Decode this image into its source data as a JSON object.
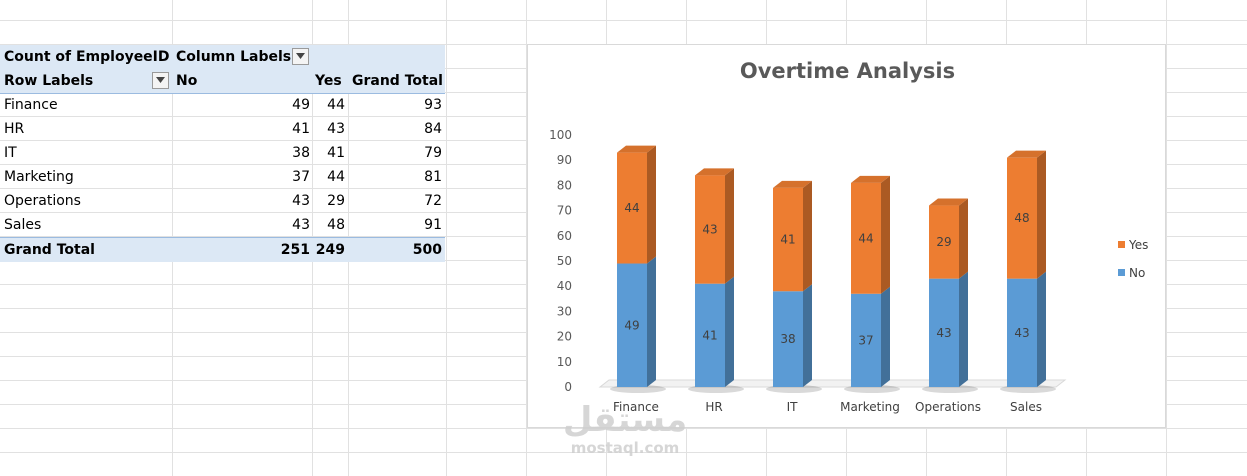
{
  "pivot": {
    "count_label": "Count of EmployeeID",
    "column_labels": "Column Labels",
    "row_labels": "Row Labels",
    "col_no": "No",
    "col_yes": "Yes",
    "col_total": "Grand Total",
    "rows": [
      {
        "label": "Finance",
        "no": "49",
        "yes": "44",
        "total": "93"
      },
      {
        "label": "HR",
        "no": "41",
        "yes": "43",
        "total": "84"
      },
      {
        "label": "IT",
        "no": "38",
        "yes": "41",
        "total": "79"
      },
      {
        "label": "Marketing",
        "no": "37",
        "yes": "44",
        "total": "81"
      },
      {
        "label": "Operations",
        "no": "43",
        "yes": "29",
        "total": "72"
      },
      {
        "label": "Sales",
        "no": "43",
        "yes": "48",
        "total": "91"
      }
    ],
    "grand_total": {
      "label": "Grand Total",
      "no": "251",
      "yes": "249",
      "total": "500"
    },
    "filter_icon": "dropdown-filter-icon"
  },
  "chart_data": {
    "type": "bar",
    "stacked": true,
    "title": "Overtime Analysis",
    "categories": [
      "Finance",
      "HR",
      "IT",
      "Marketing",
      "Operations",
      "Sales"
    ],
    "series": [
      {
        "name": "No",
        "values": [
          49,
          41,
          38,
          37,
          43,
          43
        ],
        "color": "#5b9bd5"
      },
      {
        "name": "Yes",
        "values": [
          44,
          43,
          41,
          44,
          29,
          48
        ],
        "color": "#ed7d31"
      }
    ],
    "ylim": [
      0,
      100
    ],
    "yticks": [
      "0",
      "10",
      "20",
      "30",
      "40",
      "50",
      "60",
      "70",
      "80",
      "90",
      "100"
    ],
    "legend_position": "right",
    "grid": false,
    "data_labels": true
  },
  "watermark": {
    "arabic": "مستقل",
    "latin": "mostaql.com"
  }
}
